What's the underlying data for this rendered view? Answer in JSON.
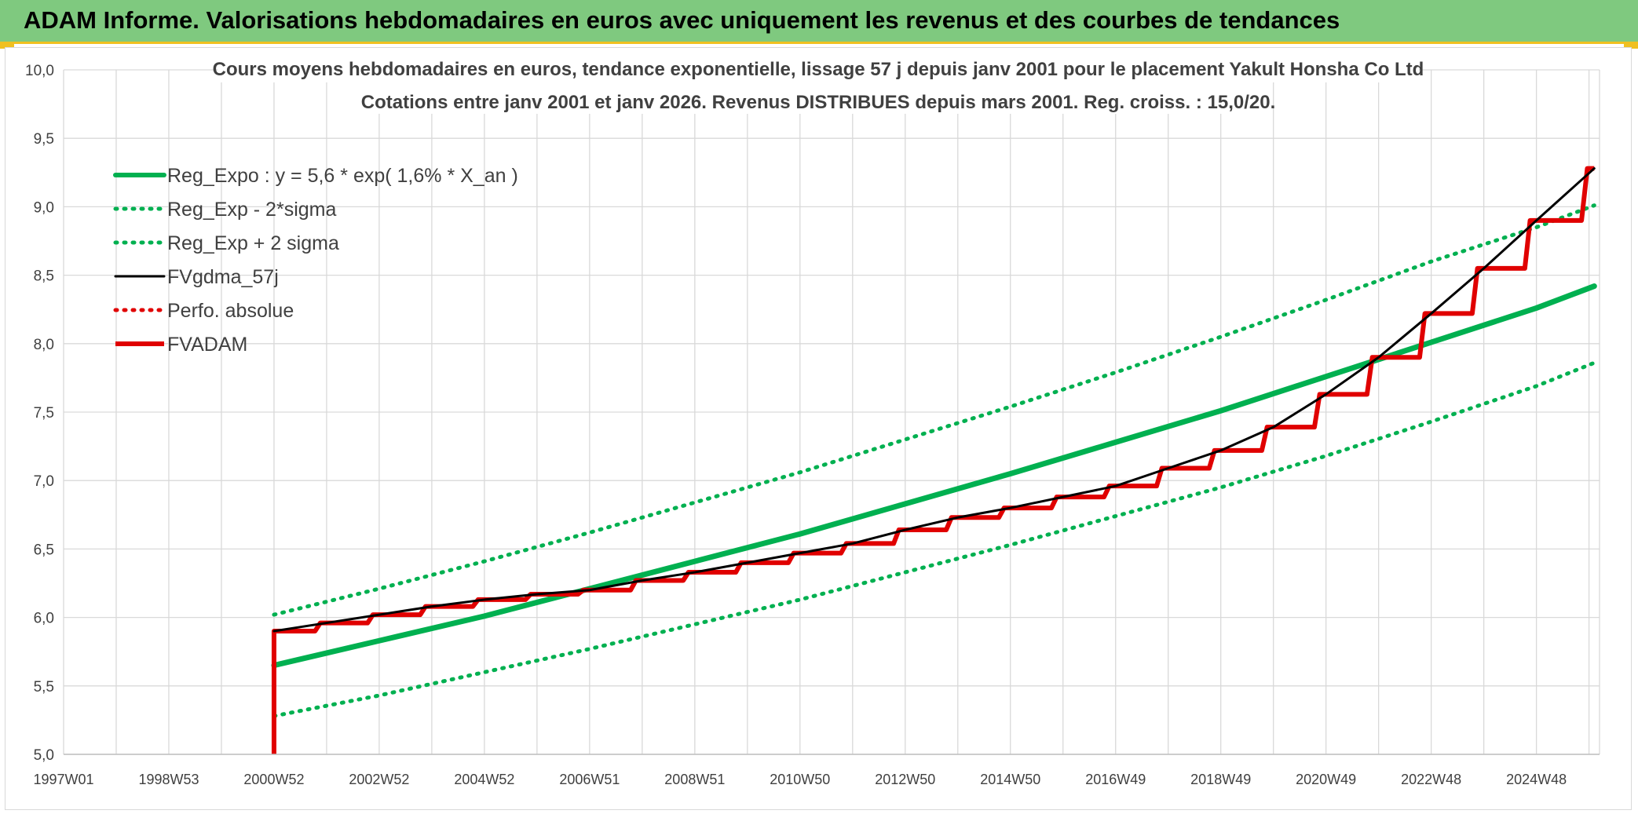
{
  "header": {
    "title": "ADAM Informe. Valorisations hebdomadaires en euros avec uniquement les revenus et des courbes de tendances"
  },
  "colors": {
    "banner": "#7fc97f",
    "trend": "#00b050",
    "smoothed": "#000000",
    "perf": "#e00000",
    "grid": "#d9d9d9",
    "text": "#404040"
  },
  "chart_data": {
    "type": "line",
    "title": "Cours moyens hebdomadaires en euros, tendance exponentielle, lissage 57 j depuis janv 2001 pour le placement Yakult Honsha Co Ltd",
    "subtitle": "Cotations entre janv 2001 et janv 2026. Revenus DISTRIBUES depuis mars 2001. Reg. croiss. : 15,0/20.",
    "xlabel": "",
    "ylabel": "",
    "x_range": [
      1997.0,
      2026.2
    ],
    "ylim": [
      5.0,
      10.0
    ],
    "y_ticks": [
      "5,0",
      "5,5",
      "6,0",
      "6,5",
      "7,0",
      "7,5",
      "8,0",
      "8,5",
      "9,0",
      "9,5",
      "10,0"
    ],
    "x_ticks": [
      {
        "label": "1997W01",
        "x": 1997.0
      },
      {
        "label": "1998W53",
        "x": 1999.0
      },
      {
        "label": "2000W52",
        "x": 2001.0
      },
      {
        "label": "2002W52",
        "x": 2003.0
      },
      {
        "label": "2004W52",
        "x": 2005.0
      },
      {
        "label": "2006W51",
        "x": 2007.0
      },
      {
        "label": "2008W51",
        "x": 2009.0
      },
      {
        "label": "2010W50",
        "x": 2011.0
      },
      {
        "label": "2012W50",
        "x": 2013.0
      },
      {
        "label": "2014W50",
        "x": 2015.0
      },
      {
        "label": "2016W49",
        "x": 2017.0
      },
      {
        "label": "2018W49",
        "x": 2019.0
      },
      {
        "label": "2020W49",
        "x": 2021.0
      },
      {
        "label": "2022W48",
        "x": 2023.0
      },
      {
        "label": "2024W48",
        "x": 2025.0
      }
    ],
    "grid": true,
    "legend_position": "top-left",
    "series": [
      {
        "name": "Reg_Expo : y = 5,6 * exp( 1,6% *  X_an )",
        "style": "solid-thick",
        "color": "#00b050",
        "points": [
          [
            2001.0,
            5.65
          ],
          [
            2003.0,
            5.83
          ],
          [
            2005.0,
            6.01
          ],
          [
            2007.0,
            6.21
          ],
          [
            2009.0,
            6.41
          ],
          [
            2011.0,
            6.61
          ],
          [
            2013.0,
            6.83
          ],
          [
            2015.0,
            7.05
          ],
          [
            2017.0,
            7.28
          ],
          [
            2019.0,
            7.51
          ],
          [
            2021.0,
            7.76
          ],
          [
            2023.0,
            8.01
          ],
          [
            2025.0,
            8.26
          ],
          [
            2026.1,
            8.42
          ]
        ]
      },
      {
        "name": "Reg_Exp - 2*sigma",
        "style": "dotted",
        "color": "#00b050",
        "points": [
          [
            2001.0,
            5.28
          ],
          [
            2003.0,
            5.43
          ],
          [
            2005.0,
            5.6
          ],
          [
            2007.0,
            5.77
          ],
          [
            2009.0,
            5.95
          ],
          [
            2011.0,
            6.13
          ],
          [
            2013.0,
            6.33
          ],
          [
            2015.0,
            6.53
          ],
          [
            2017.0,
            6.74
          ],
          [
            2019.0,
            6.95
          ],
          [
            2021.0,
            7.18
          ],
          [
            2023.0,
            7.43
          ],
          [
            2025.0,
            7.69
          ],
          [
            2026.1,
            7.86
          ]
        ]
      },
      {
        "name": "Reg_Exp + 2 sigma",
        "style": "dotted",
        "color": "#00b050",
        "points": [
          [
            2001.0,
            6.02
          ],
          [
            2003.0,
            6.21
          ],
          [
            2005.0,
            6.41
          ],
          [
            2007.0,
            6.62
          ],
          [
            2009.0,
            6.84
          ],
          [
            2011.0,
            7.06
          ],
          [
            2013.0,
            7.3
          ],
          [
            2015.0,
            7.54
          ],
          [
            2017.0,
            7.79
          ],
          [
            2019.0,
            8.05
          ],
          [
            2021.0,
            8.32
          ],
          [
            2023.0,
            8.6
          ],
          [
            2025.0,
            8.85
          ],
          [
            2026.1,
            9.01
          ]
        ]
      },
      {
        "name": "FVgdma_57j",
        "style": "solid",
        "color": "#000000",
        "points": [
          [
            2001.0,
            5.9
          ],
          [
            2002.0,
            5.96
          ],
          [
            2003.0,
            6.02
          ],
          [
            2004.0,
            6.08
          ],
          [
            2005.0,
            6.13
          ],
          [
            2006.0,
            6.17
          ],
          [
            2007.0,
            6.2
          ],
          [
            2008.0,
            6.27
          ],
          [
            2009.0,
            6.33
          ],
          [
            2010.0,
            6.4
          ],
          [
            2011.0,
            6.47
          ],
          [
            2012.0,
            6.54
          ],
          [
            2013.0,
            6.64
          ],
          [
            2014.0,
            6.73
          ],
          [
            2015.0,
            6.8
          ],
          [
            2016.0,
            6.88
          ],
          [
            2017.0,
            6.96
          ],
          [
            2018.0,
            7.09
          ],
          [
            2019.0,
            7.22
          ],
          [
            2020.0,
            7.39
          ],
          [
            2021.0,
            7.63
          ],
          [
            2022.0,
            7.9
          ],
          [
            2023.0,
            8.22
          ],
          [
            2024.0,
            8.55
          ],
          [
            2025.0,
            8.9
          ],
          [
            2026.1,
            9.28
          ]
        ]
      },
      {
        "name": "Perfo. absolue",
        "style": "dotted",
        "color": "#e00000",
        "points": []
      },
      {
        "name": "FVADAM",
        "style": "solid-thick-step",
        "color": "#e00000",
        "points": [
          [
            2001.0,
            5.0
          ],
          [
            2001.0,
            5.9
          ],
          [
            2002.0,
            5.96
          ],
          [
            2003.0,
            6.02
          ],
          [
            2004.0,
            6.08
          ],
          [
            2005.0,
            6.13
          ],
          [
            2006.0,
            6.17
          ],
          [
            2007.0,
            6.2
          ],
          [
            2008.0,
            6.27
          ],
          [
            2009.0,
            6.33
          ],
          [
            2010.0,
            6.4
          ],
          [
            2011.0,
            6.47
          ],
          [
            2012.0,
            6.54
          ],
          [
            2013.0,
            6.64
          ],
          [
            2014.0,
            6.73
          ],
          [
            2015.0,
            6.8
          ],
          [
            2016.0,
            6.88
          ],
          [
            2017.0,
            6.96
          ],
          [
            2018.0,
            7.09
          ],
          [
            2019.0,
            7.22
          ],
          [
            2020.0,
            7.39
          ],
          [
            2021.0,
            7.63
          ],
          [
            2022.0,
            7.9
          ],
          [
            2023.0,
            8.22
          ],
          [
            2024.0,
            8.55
          ],
          [
            2025.0,
            8.9
          ],
          [
            2026.1,
            9.28
          ]
        ]
      }
    ]
  }
}
